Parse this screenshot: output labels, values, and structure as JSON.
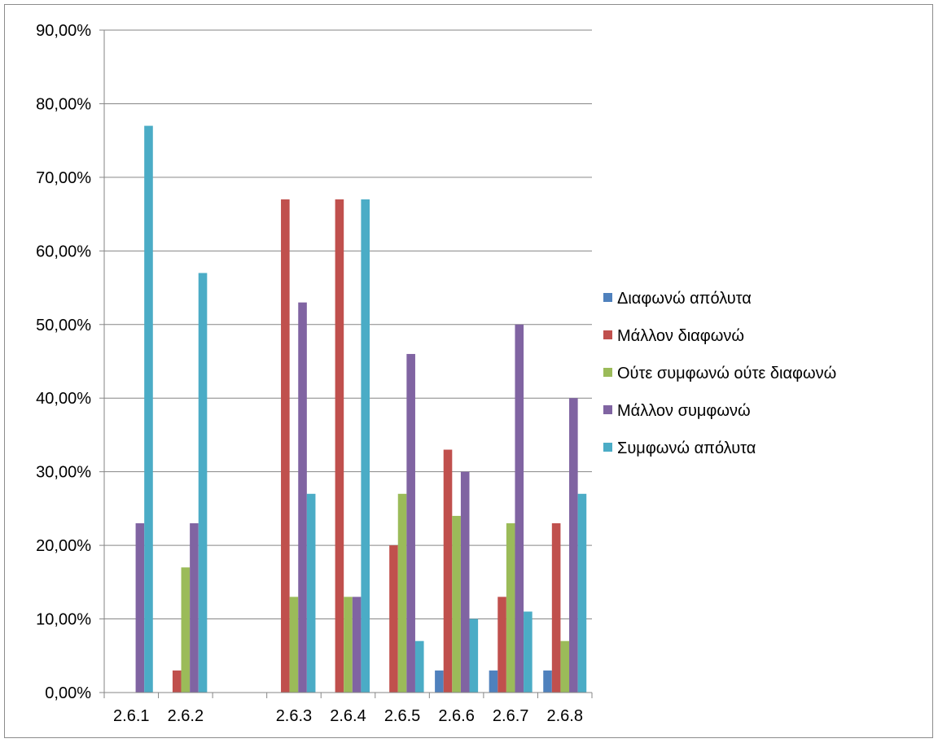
{
  "chart_data": {
    "type": "bar",
    "title": "",
    "xlabel": "",
    "ylabel": "",
    "ylim": [
      0,
      90
    ],
    "y_ticks": [
      0,
      10,
      20,
      30,
      40,
      50,
      60,
      70,
      80,
      90
    ],
    "y_tick_labels": [
      "0,00%",
      "10,00%",
      "20,00%",
      "30,00%",
      "40,00%",
      "50,00%",
      "60,00%",
      "70,00%",
      "80,00%",
      "90,00%"
    ],
    "categories": [
      "2.6.1",
      "2.6.2",
      "",
      "2.6.3",
      "2.6.4",
      "2.6.5",
      "2.6.6",
      "2.6.7",
      "2.6.8"
    ],
    "grid": true,
    "legend_position": "right",
    "series": [
      {
        "name": "Διαφωνώ απόλυτα",
        "color": "#4f81bd",
        "values": [
          0,
          0,
          0,
          0,
          0,
          0,
          3,
          3,
          3
        ]
      },
      {
        "name": "Μάλλον διαφωνώ",
        "color": "#c0504d",
        "values": [
          0,
          3,
          0,
          67,
          67,
          20,
          33,
          13,
          23
        ]
      },
      {
        "name": "Ούτε συμφωνώ ούτε διαφωνώ",
        "color": "#9bbb59",
        "values": [
          0,
          17,
          0,
          13,
          13,
          27,
          24,
          23,
          7
        ]
      },
      {
        "name": "Μάλλον συμφωνώ",
        "color": "#8064a2",
        "values": [
          23,
          23,
          0,
          53,
          13,
          46,
          30,
          50,
          40
        ]
      },
      {
        "name": "Συμφωνώ απόλυτα",
        "color": "#4bacc6",
        "values": [
          77,
          57,
          0,
          27,
          67,
          7,
          10,
          11,
          27
        ]
      }
    ]
  }
}
